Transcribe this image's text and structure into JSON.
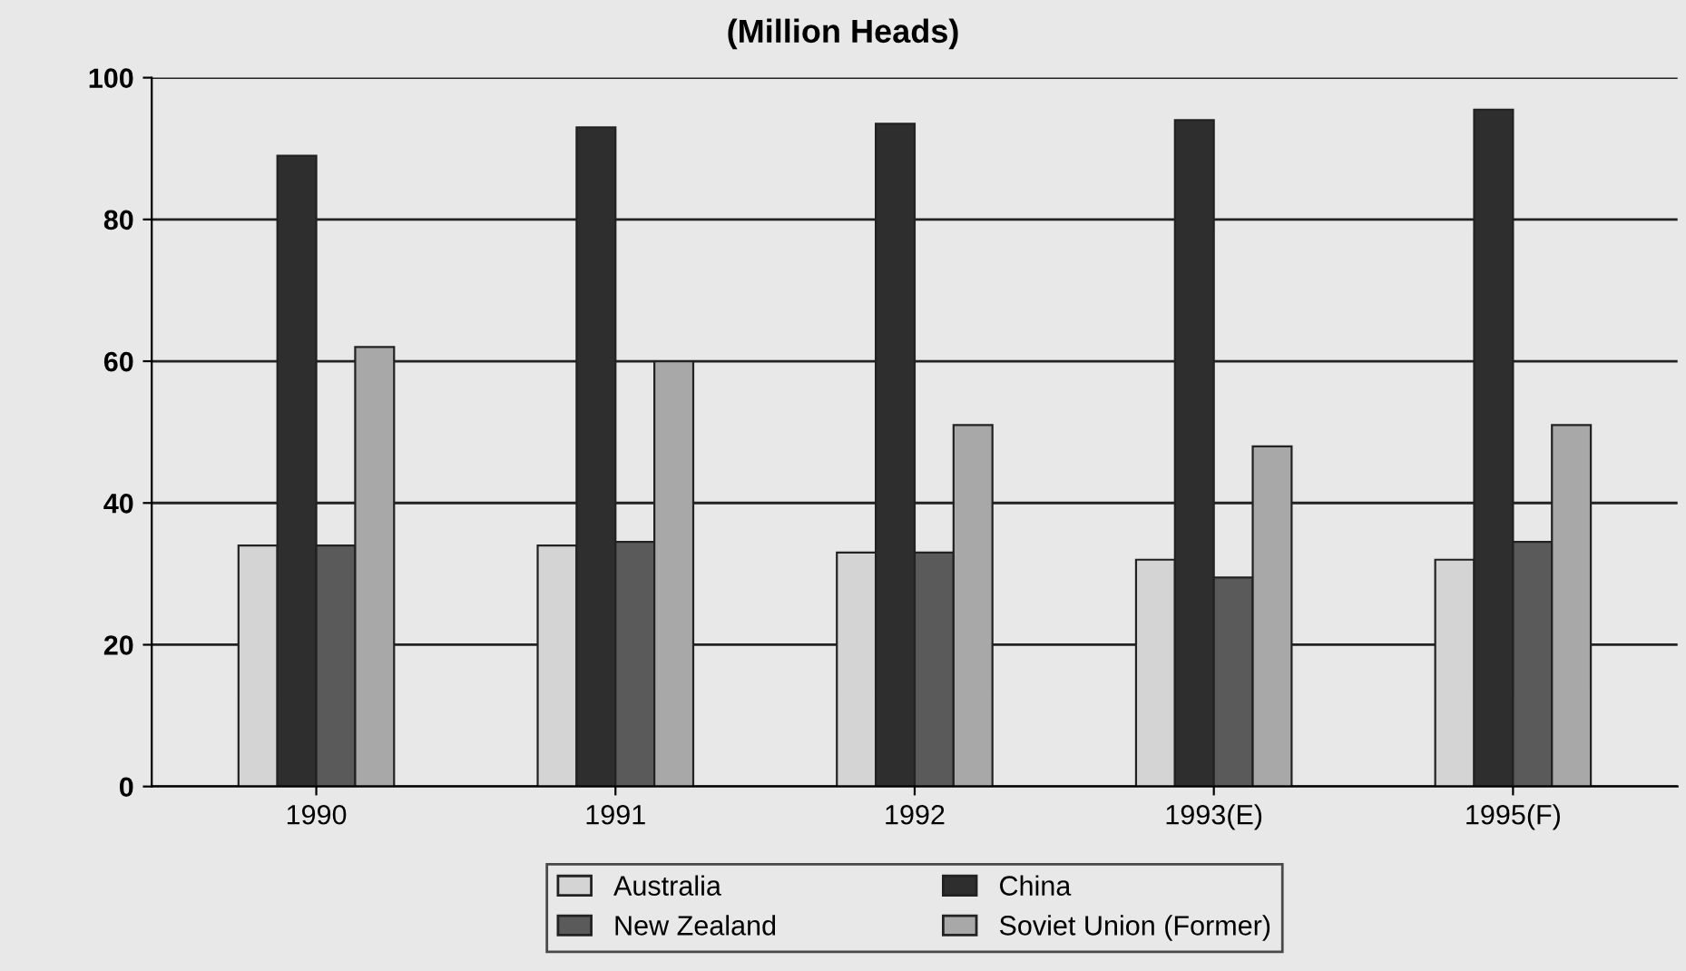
{
  "chart_data": {
    "type": "bar",
    "title": "(Million Heads)",
    "categories": [
      "1990",
      "1991",
      "1992",
      "1993(E)",
      "1995(F)"
    ],
    "series": [
      {
        "name": "Australia",
        "color": "#d4d4d4",
        "values": [
          34,
          34,
          33,
          32,
          32
        ]
      },
      {
        "name": "China",
        "color": "#2e2e2e",
        "values": [
          89,
          93,
          93.5,
          94,
          95.5
        ]
      },
      {
        "name": "New Zealand",
        "color": "#5a5a5a",
        "values": [
          34,
          34.5,
          33,
          29.5,
          34.5
        ]
      },
      {
        "name": "Soviet Union (Former)",
        "color": "#a8a8a8",
        "values": [
          62,
          60,
          51,
          48,
          51
        ]
      }
    ],
    "ylim": [
      0,
      100
    ],
    "yticks": [
      0,
      20,
      40,
      60,
      80,
      100
    ],
    "grid": "y",
    "legend": "bottom"
  }
}
